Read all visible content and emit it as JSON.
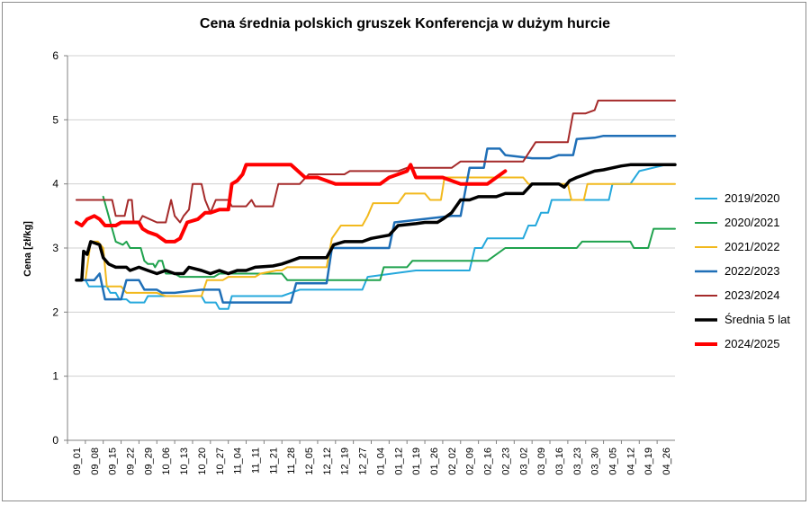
{
  "chart_data": {
    "type": "line",
    "title": "Cena średnia polskich gruszek Konferencja w dużym hurcie",
    "ylabel": "Cena [zł/kg]",
    "xlabel": "",
    "ylim": [
      0,
      6
    ],
    "yticks": [
      "0",
      "1",
      "2",
      "3",
      "4",
      "5",
      "6"
    ],
    "grid": "horizontal",
    "legend_position": "right",
    "x_ticks": [
      "09_01",
      "09_08",
      "09_15",
      "09_22",
      "09_29",
      "10_06",
      "10_13",
      "10_20",
      "10_27",
      "11_04",
      "11_11",
      "11_21",
      "11_28",
      "12_05",
      "12_12",
      "12_19",
      "12_27",
      "01_04",
      "01_12",
      "01_19",
      "01_26",
      "02_02",
      "02_09",
      "02_16",
      "02_23",
      "03_02",
      "03_09",
      "03_16",
      "03_23",
      "03_30",
      "04_05",
      "04_12",
      "04_19",
      "04_26"
    ],
    "series": [
      {
        "name": "2019/2020",
        "color": "#25a8dc",
        "width": 2,
        "points": [
          [
            0,
            2.5
          ],
          [
            0.5,
            2.5
          ],
          [
            0.7,
            2.4
          ],
          [
            1.5,
            2.4
          ],
          [
            1.7,
            2.4
          ],
          [
            1.9,
            2.3
          ],
          [
            2,
            2.3
          ],
          [
            2.2,
            2.3
          ],
          [
            2.4,
            2.2
          ],
          [
            2.8,
            2.2
          ],
          [
            3,
            2.15
          ],
          [
            3.8,
            2.15
          ],
          [
            4,
            2.25
          ],
          [
            7,
            2.25
          ],
          [
            7.2,
            2.15
          ],
          [
            7.8,
            2.15
          ],
          [
            8,
            2.05
          ],
          [
            8.5,
            2.05
          ],
          [
            8.7,
            2.25
          ],
          [
            11.5,
            2.25
          ],
          [
            12,
            2.3
          ],
          [
            12.5,
            2.35
          ],
          [
            16,
            2.35
          ],
          [
            16.3,
            2.55
          ],
          [
            19,
            2.65
          ],
          [
            22,
            2.65
          ],
          [
            22.3,
            3.0
          ],
          [
            22.7,
            3.0
          ],
          [
            23,
            3.15
          ],
          [
            25,
            3.15
          ],
          [
            25.3,
            3.35
          ],
          [
            25.7,
            3.35
          ],
          [
            26,
            3.55
          ],
          [
            26.4,
            3.55
          ],
          [
            26.6,
            3.75
          ],
          [
            28,
            3.75
          ],
          [
            28.3,
            3.75
          ],
          [
            29.8,
            3.75
          ],
          [
            30,
            4.0
          ],
          [
            31,
            4.0
          ],
          [
            31.5,
            4.2
          ],
          [
            33,
            4.3
          ],
          [
            33.5,
            4.3
          ]
        ]
      },
      {
        "name": "2020/2021",
        "color": "#1fa24d",
        "width": 2,
        "points": [
          [
            1.5,
            3.8
          ],
          [
            1.8,
            3.5
          ],
          [
            2,
            3.3
          ],
          [
            2.2,
            3.1
          ],
          [
            2.6,
            3.05
          ],
          [
            2.8,
            3.1
          ],
          [
            3,
            3.0
          ],
          [
            3.6,
            3.0
          ],
          [
            3.8,
            2.8
          ],
          [
            4,
            2.75
          ],
          [
            4.3,
            2.75
          ],
          [
            4.4,
            2.7
          ],
          [
            4.6,
            2.8
          ],
          [
            4.8,
            2.8
          ],
          [
            5,
            2.6
          ],
          [
            5.5,
            2.6
          ],
          [
            5.8,
            2.55
          ],
          [
            7.7,
            2.55
          ],
          [
            8,
            2.6
          ],
          [
            9,
            2.6
          ],
          [
            11.5,
            2.6
          ],
          [
            11.8,
            2.5
          ],
          [
            17,
            2.5
          ],
          [
            17.2,
            2.7
          ],
          [
            18.5,
            2.7
          ],
          [
            18.8,
            2.8
          ],
          [
            22,
            2.8
          ],
          [
            23,
            2.8
          ],
          [
            24,
            3.0
          ],
          [
            28,
            3.0
          ],
          [
            28.3,
            3.1
          ],
          [
            31,
            3.1
          ],
          [
            31.2,
            3.0
          ],
          [
            32,
            3.0
          ],
          [
            32.3,
            3.3
          ],
          [
            33.5,
            3.3
          ]
        ]
      },
      {
        "name": "2021/2022",
        "color": "#f2b91d",
        "width": 2,
        "points": [
          [
            0,
            2.5
          ],
          [
            0.5,
            2.5
          ],
          [
            0.8,
            3.1
          ],
          [
            1.2,
            3.1
          ],
          [
            1.5,
            3.0
          ],
          [
            1.7,
            2.4
          ],
          [
            2.5,
            2.4
          ],
          [
            2.8,
            2.3
          ],
          [
            4.5,
            2.3
          ],
          [
            5,
            2.25
          ],
          [
            7,
            2.25
          ],
          [
            7.3,
            2.5
          ],
          [
            8.2,
            2.5
          ],
          [
            8.5,
            2.55
          ],
          [
            10,
            2.55
          ],
          [
            10.3,
            2.6
          ],
          [
            11.2,
            2.65
          ],
          [
            11.5,
            2.65
          ],
          [
            11.8,
            2.7
          ],
          [
            14,
            2.7
          ],
          [
            14.3,
            3.15
          ],
          [
            14.8,
            3.35
          ],
          [
            16,
            3.35
          ],
          [
            16.3,
            3.5
          ],
          [
            16.6,
            3.7
          ],
          [
            18,
            3.7
          ],
          [
            18.4,
            3.85
          ],
          [
            19.5,
            3.85
          ],
          [
            19.8,
            3.75
          ],
          [
            20.4,
            3.75
          ],
          [
            20.6,
            4.1
          ],
          [
            25,
            4.1
          ],
          [
            25.3,
            4.0
          ],
          [
            27.5,
            4.0
          ],
          [
            27.7,
            3.75
          ],
          [
            28.4,
            3.75
          ],
          [
            28.6,
            4.0
          ],
          [
            33.5,
            4.0
          ]
        ]
      },
      {
        "name": "2022/2023",
        "color": "#1f6fb7",
        "width": 2.5,
        "points": [
          [
            0,
            2.5
          ],
          [
            1,
            2.5
          ],
          [
            1.3,
            2.6
          ],
          [
            1.6,
            2.2
          ],
          [
            2.5,
            2.2
          ],
          [
            2.8,
            2.5
          ],
          [
            3.5,
            2.5
          ],
          [
            3.8,
            2.35
          ],
          [
            4.5,
            2.35
          ],
          [
            4.8,
            2.3
          ],
          [
            5.5,
            2.3
          ],
          [
            7,
            2.35
          ],
          [
            8,
            2.35
          ],
          [
            8.2,
            2.15
          ],
          [
            10,
            2.15
          ],
          [
            12,
            2.15
          ],
          [
            12.3,
            2.45
          ],
          [
            14,
            2.45
          ],
          [
            14.3,
            3.0
          ],
          [
            17.5,
            3.0
          ],
          [
            17.8,
            3.4
          ],
          [
            21,
            3.5
          ],
          [
            21.5,
            3.5
          ],
          [
            22,
            4.25
          ],
          [
            22.8,
            4.25
          ],
          [
            23,
            4.55
          ],
          [
            23.7,
            4.55
          ],
          [
            24,
            4.45
          ],
          [
            25.5,
            4.4
          ],
          [
            26.5,
            4.4
          ],
          [
            27,
            4.45
          ],
          [
            27.8,
            4.45
          ],
          [
            28,
            4.7
          ],
          [
            29,
            4.72
          ],
          [
            29.5,
            4.75
          ],
          [
            33.5,
            4.75
          ]
        ]
      },
      {
        "name": "2023/2024",
        "color": "#a52a2a",
        "width": 2,
        "points": [
          [
            0,
            3.75
          ],
          [
            2,
            3.75
          ],
          [
            2.2,
            3.5
          ],
          [
            2.7,
            3.5
          ],
          [
            2.9,
            3.75
          ],
          [
            3.1,
            3.75
          ],
          [
            3.2,
            3.4
          ],
          [
            3.5,
            3.4
          ],
          [
            3.7,
            3.5
          ],
          [
            4.5,
            3.4
          ],
          [
            5,
            3.4
          ],
          [
            5.3,
            3.75
          ],
          [
            5.5,
            3.5
          ],
          [
            5.8,
            3.4
          ],
          [
            6,
            3.5
          ],
          [
            6.3,
            3.6
          ],
          [
            6.5,
            4.0
          ],
          [
            7,
            4.0
          ],
          [
            7.2,
            3.75
          ],
          [
            7.5,
            3.55
          ],
          [
            7.8,
            3.75
          ],
          [
            8.5,
            3.75
          ],
          [
            8.7,
            3.65
          ],
          [
            9.5,
            3.65
          ],
          [
            9.8,
            3.75
          ],
          [
            10,
            3.65
          ],
          [
            11,
            3.65
          ],
          [
            11.3,
            4.0
          ],
          [
            12.5,
            4.0
          ],
          [
            13,
            4.15
          ],
          [
            15,
            4.15
          ],
          [
            15.3,
            4.2
          ],
          [
            18,
            4.2
          ],
          [
            18.5,
            4.25
          ],
          [
            21,
            4.25
          ],
          [
            21.5,
            4.35
          ],
          [
            25,
            4.35
          ],
          [
            25.7,
            4.65
          ],
          [
            27.5,
            4.65
          ],
          [
            27.8,
            5.1
          ],
          [
            28.5,
            5.1
          ],
          [
            29,
            5.15
          ],
          [
            29.2,
            5.3
          ],
          [
            33.5,
            5.3
          ]
        ]
      },
      {
        "name": "Średnia 5 lat",
        "color": "#000000",
        "width": 3.5,
        "points": [
          [
            0,
            2.5
          ],
          [
            0.3,
            2.5
          ],
          [
            0.4,
            2.95
          ],
          [
            0.6,
            2.9
          ],
          [
            0.8,
            3.1
          ],
          [
            1.3,
            3.05
          ],
          [
            1.5,
            2.85
          ],
          [
            1.8,
            2.75
          ],
          [
            2.2,
            2.7
          ],
          [
            2.8,
            2.7
          ],
          [
            3,
            2.65
          ],
          [
            3.5,
            2.7
          ],
          [
            4,
            2.65
          ],
          [
            4.5,
            2.6
          ],
          [
            5,
            2.65
          ],
          [
            5.5,
            2.6
          ],
          [
            6,
            2.6
          ],
          [
            6.3,
            2.7
          ],
          [
            7,
            2.65
          ],
          [
            7.5,
            2.6
          ],
          [
            8,
            2.65
          ],
          [
            8.5,
            2.6
          ],
          [
            9,
            2.65
          ],
          [
            9.5,
            2.65
          ],
          [
            10,
            2.7
          ],
          [
            11,
            2.72
          ],
          [
            11.5,
            2.75
          ],
          [
            12,
            2.8
          ],
          [
            12.5,
            2.85
          ],
          [
            14,
            2.85
          ],
          [
            14.4,
            3.05
          ],
          [
            15,
            3.1
          ],
          [
            16,
            3.1
          ],
          [
            16.5,
            3.15
          ],
          [
            17.5,
            3.2
          ],
          [
            18,
            3.35
          ],
          [
            19,
            3.38
          ],
          [
            19.5,
            3.4
          ],
          [
            20.2,
            3.4
          ],
          [
            20.5,
            3.45
          ],
          [
            21,
            3.55
          ],
          [
            21.5,
            3.75
          ],
          [
            22,
            3.75
          ],
          [
            22.5,
            3.8
          ],
          [
            23.5,
            3.8
          ],
          [
            24,
            3.85
          ],
          [
            25,
            3.85
          ],
          [
            25.5,
            4.0
          ],
          [
            27,
            4.0
          ],
          [
            27.3,
            3.95
          ],
          [
            27.6,
            4.05
          ],
          [
            28,
            4.1
          ],
          [
            28.5,
            4.15
          ],
          [
            29,
            4.2
          ],
          [
            29.5,
            4.22
          ],
          [
            30,
            4.25
          ],
          [
            30.5,
            4.28
          ],
          [
            31,
            4.3
          ],
          [
            32,
            4.3
          ],
          [
            33.5,
            4.3
          ]
        ]
      },
      {
        "name": "2024/2025",
        "color": "#ff0000",
        "width": 4,
        "points": [
          [
            0,
            3.4
          ],
          [
            0.3,
            3.35
          ],
          [
            0.6,
            3.45
          ],
          [
            1,
            3.5
          ],
          [
            1.3,
            3.45
          ],
          [
            1.6,
            3.35
          ],
          [
            2.2,
            3.35
          ],
          [
            2.5,
            3.4
          ],
          [
            3.5,
            3.4
          ],
          [
            3.7,
            3.3
          ],
          [
            4,
            3.25
          ],
          [
            4.5,
            3.2
          ],
          [
            5,
            3.1
          ],
          [
            5.5,
            3.1
          ],
          [
            5.8,
            3.15
          ],
          [
            6.2,
            3.4
          ],
          [
            6.8,
            3.45
          ],
          [
            7.2,
            3.55
          ],
          [
            7.5,
            3.55
          ],
          [
            8,
            3.6
          ],
          [
            8.5,
            3.6
          ],
          [
            8.7,
            4.0
          ],
          [
            9,
            4.05
          ],
          [
            9.3,
            4.15
          ],
          [
            9.5,
            4.3
          ],
          [
            10.5,
            4.3
          ],
          [
            11,
            4.3
          ],
          [
            12,
            4.3
          ],
          [
            12.4,
            4.2
          ],
          [
            12.8,
            4.1
          ],
          [
            13.5,
            4.1
          ],
          [
            14,
            4.05
          ],
          [
            14.5,
            4.0
          ],
          [
            16,
            4.0
          ],
          [
            17,
            4.0
          ],
          [
            17.5,
            4.1
          ],
          [
            18,
            4.15
          ],
          [
            18.5,
            4.2
          ],
          [
            18.7,
            4.3
          ],
          [
            19,
            4.1
          ],
          [
            20,
            4.1
          ],
          [
            20.5,
            4.1
          ],
          [
            21,
            4.05
          ],
          [
            21.5,
            4.0
          ],
          [
            22,
            4.0
          ],
          [
            23,
            4.0
          ],
          [
            23.5,
            4.1
          ],
          [
            24,
            4.2
          ]
        ]
      }
    ]
  }
}
